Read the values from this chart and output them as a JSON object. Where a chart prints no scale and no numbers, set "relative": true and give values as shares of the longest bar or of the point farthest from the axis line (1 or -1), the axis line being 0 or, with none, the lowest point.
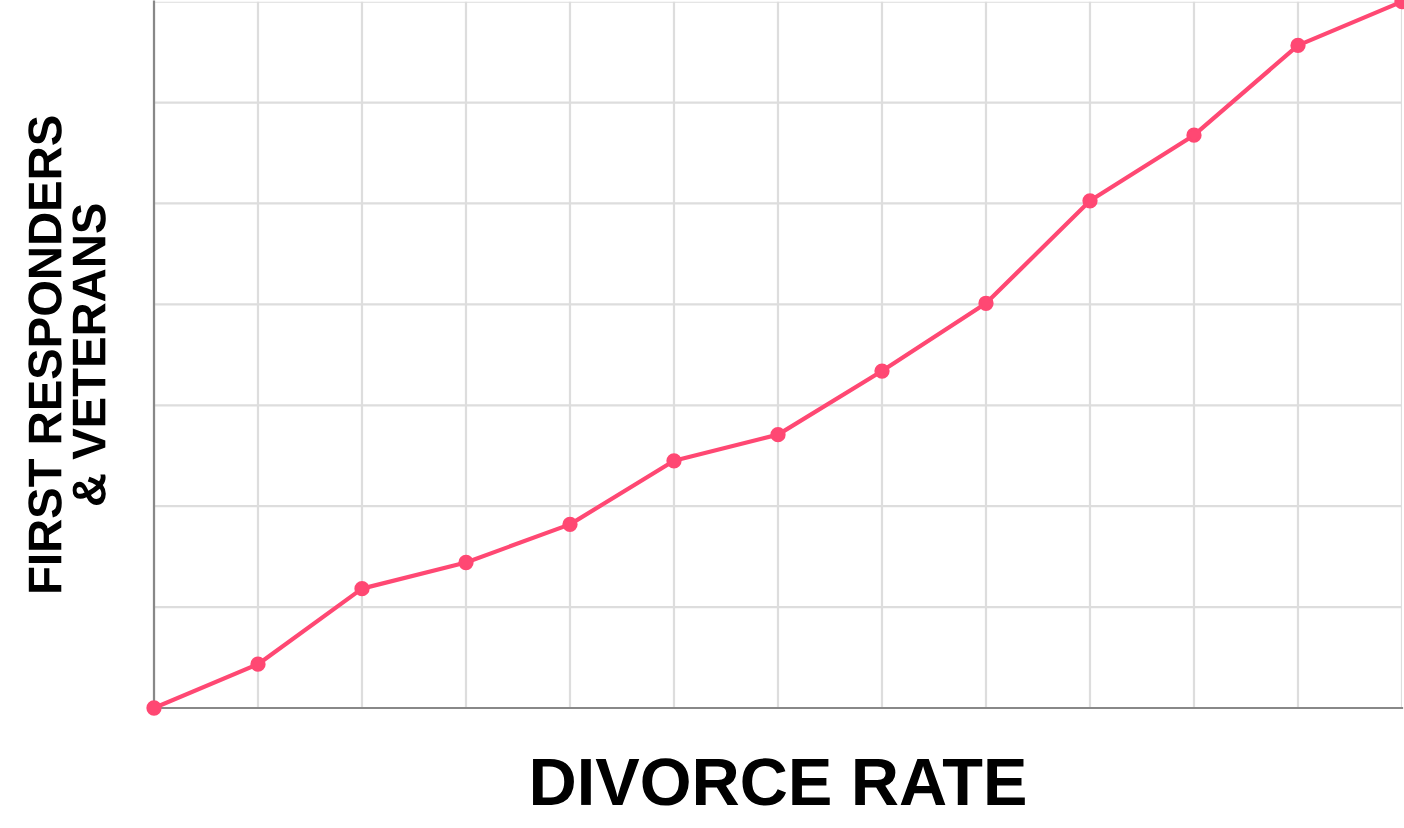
{
  "chart_data": {
    "type": "line",
    "xlabel": "DIVORCE RATE",
    "ylabel": "FIRST RESPONDERS\n& VETERANS",
    "relative": true,
    "categories": [
      null,
      null,
      null,
      null,
      null,
      null,
      null,
      null,
      null,
      null,
      null,
      null,
      null
    ],
    "series": [
      {
        "color": "#ff4873",
        "values": [
          0,
          0.062,
          0.169,
          0.206,
          0.26,
          0.35,
          0.387,
          0.477,
          0.573,
          0.718,
          0.811,
          0.938,
          1.0
        ]
      }
    ],
    "marker": "circle",
    "line_style": "solid",
    "grid": true,
    "legend": false
  }
}
